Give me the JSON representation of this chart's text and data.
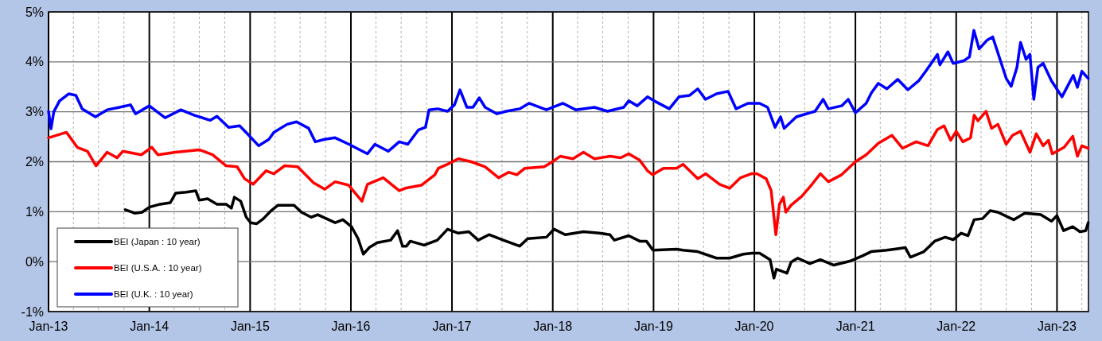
{
  "chart_data": {
    "type": "line",
    "xlim": [
      "2013-01-01",
      "2023-04-25"
    ],
    "ylim": [
      -1,
      5
    ],
    "yticks": [
      {
        "value": -1,
        "label": "-1%"
      },
      {
        "value": 0,
        "label": "0%"
      },
      {
        "value": 1,
        "label": "1%"
      },
      {
        "value": 2,
        "label": "2%"
      },
      {
        "value": 3,
        "label": "3%"
      },
      {
        "value": 4,
        "label": "4%"
      },
      {
        "value": 5,
        "label": "5%"
      }
    ],
    "xticks": [
      {
        "value": "2013-01-01",
        "label": "Jan-13"
      },
      {
        "value": "2013-04-01",
        "label": null
      },
      {
        "value": "2013-07-01",
        "label": null
      },
      {
        "value": "2013-10-01",
        "label": null
      },
      {
        "value": "2014-01-01",
        "label": "Jan-14"
      },
      {
        "value": "2014-04-01",
        "label": null
      },
      {
        "value": "2014-07-01",
        "label": null
      },
      {
        "value": "2014-10-01",
        "label": null
      },
      {
        "value": "2015-01-01",
        "label": "Jan-15"
      },
      {
        "value": "2015-04-01",
        "label": null
      },
      {
        "value": "2015-07-01",
        "label": null
      },
      {
        "value": "2015-10-01",
        "label": null
      },
      {
        "value": "2016-01-01",
        "label": "Jan-16"
      },
      {
        "value": "2016-04-01",
        "label": null
      },
      {
        "value": "2016-07-01",
        "label": null
      },
      {
        "value": "2016-10-01",
        "label": null
      },
      {
        "value": "2017-01-01",
        "label": "Jan-17"
      },
      {
        "value": "2017-04-01",
        "label": null
      },
      {
        "value": "2017-07-01",
        "label": null
      },
      {
        "value": "2017-10-01",
        "label": null
      },
      {
        "value": "2018-01-01",
        "label": "Jan-18"
      },
      {
        "value": "2018-04-01",
        "label": null
      },
      {
        "value": "2018-07-01",
        "label": null
      },
      {
        "value": "2018-10-01",
        "label": null
      },
      {
        "value": "2019-01-01",
        "label": "Jan-19"
      },
      {
        "value": "2019-04-01",
        "label": null
      },
      {
        "value": "2019-07-01",
        "label": null
      },
      {
        "value": "2019-10-01",
        "label": null
      },
      {
        "value": "2020-01-01",
        "label": "Jan-20"
      },
      {
        "value": "2020-04-01",
        "label": null
      },
      {
        "value": "2020-07-01",
        "label": null
      },
      {
        "value": "2020-10-01",
        "label": null
      },
      {
        "value": "2021-01-01",
        "label": "Jan-21"
      },
      {
        "value": "2021-04-01",
        "label": null
      },
      {
        "value": "2021-07-01",
        "label": null
      },
      {
        "value": "2021-10-01",
        "label": null
      },
      {
        "value": "2022-01-01",
        "label": "Jan-22"
      },
      {
        "value": "2022-04-01",
        "label": null
      },
      {
        "value": "2022-07-01",
        "label": null
      },
      {
        "value": "2022-10-01",
        "label": null
      },
      {
        "value": "2023-01-01",
        "label": "Jan-23"
      },
      {
        "value": "2023-04-01",
        "label": null
      }
    ],
    "grid": true,
    "legend": "bottom left",
    "line_style": "solid",
    "marker": "none",
    "series": [
      {
        "name": "BEI (Japan : 10 year)",
        "color": "#000000",
        "x": [
          "2013-10-06",
          "2013-11-09",
          "2013-12-06",
          "2014-01-01",
          "2014-02-09",
          "2014-03-18",
          "2014-04-06",
          "2014-05-15",
          "2014-06-18",
          "2014-07-01",
          "2014-07-31",
          "2014-09-03",
          "2014-10-06",
          "2014-10-25",
          "2014-11-05",
          "2014-11-28",
          "2014-12-18",
          "2015-01-03",
          "2015-01-25",
          "2015-02-18",
          "2015-03-18",
          "2015-04-12",
          "2015-05-06",
          "2015-06-09",
          "2015-07-06",
          "2015-08-10",
          "2015-09-03",
          "2015-11-05",
          "2015-12-03",
          "2016-01-03",
          "2016-01-27",
          "2016-02-15",
          "2016-03-09",
          "2016-04-06",
          "2016-05-24",
          "2016-06-18",
          "2016-07-06",
          "2016-07-20",
          "2016-08-03",
          "2016-09-22",
          "2016-11-09",
          "2016-12-16",
          "2017-01-24",
          "2017-03-03",
          "2017-04-06",
          "2017-05-15",
          "2017-07-06",
          "2017-09-03",
          "2017-10-02",
          "2017-12-09",
          "2018-01-06",
          "2018-02-15",
          "2018-04-22",
          "2018-06-18",
          "2018-07-27",
          "2018-08-12",
          "2018-10-03",
          "2018-11-12",
          "2018-12-06",
          "2018-12-30",
          "2019-03-25",
          "2019-04-18",
          "2019-06-10",
          "2019-08-17",
          "2019-10-04",
          "2019-11-22",
          "2019-12-24",
          "2020-01-20",
          "2020-02-27",
          "2020-03-12",
          "2020-03-21",
          "2020-04-28",
          "2020-05-13",
          "2020-06-06",
          "2020-07-20",
          "2020-08-27",
          "2020-10-15",
          "2020-12-12",
          "2021-01-28",
          "2021-02-27",
          "2021-04-24",
          "2021-05-22",
          "2021-07-01",
          "2021-07-19",
          "2021-09-06",
          "2021-10-15",
          "2021-11-22",
          "2021-12-21",
          "2022-01-19",
          "2022-02-13",
          "2022-03-07",
          "2022-04-06",
          "2022-05-04",
          "2022-06-01",
          "2022-07-28",
          "2022-09-06",
          "2022-11-03",
          "2022-12-12",
          "2023-01-01",
          "2023-01-25",
          "2023-02-27",
          "2023-03-25",
          "2023-04-15",
          "2023-04-24"
        ],
        "values": [
          1.04,
          0.97,
          0.99,
          1.09,
          1.15,
          1.18,
          1.37,
          1.39,
          1.42,
          1.23,
          1.26,
          1.15,
          1.15,
          1.07,
          1.29,
          1.21,
          0.89,
          0.78,
          0.76,
          0.86,
          1.02,
          1.13,
          1.13,
          1.13,
          0.99,
          0.89,
          0.94,
          0.78,
          0.84,
          0.7,
          0.46,
          0.15,
          0.29,
          0.38,
          0.43,
          0.62,
          0.31,
          0.31,
          0.41,
          0.33,
          0.43,
          0.65,
          0.57,
          0.6,
          0.43,
          0.54,
          0.43,
          0.31,
          0.46,
          0.49,
          0.65,
          0.54,
          0.6,
          0.57,
          0.54,
          0.43,
          0.52,
          0.41,
          0.41,
          0.23,
          0.25,
          0.23,
          0.2,
          0.07,
          0.07,
          0.15,
          0.17,
          0.17,
          0.04,
          -0.33,
          -0.15,
          -0.23,
          -0.01,
          0.07,
          -0.04,
          0.04,
          -0.07,
          0.01,
          0.12,
          0.2,
          0.23,
          0.25,
          0.28,
          0.09,
          0.2,
          0.41,
          0.49,
          0.44,
          0.57,
          0.52,
          0.84,
          0.86,
          1.02,
          0.99,
          0.84,
          0.97,
          0.94,
          0.81,
          0.92,
          0.62,
          0.7,
          0.6,
          0.62,
          0.78
        ]
      },
      {
        "name": "BEI (U.S.A. : 10 year)",
        "color": "#ff0000",
        "x": [
          "2013-01-01",
          "2013-03-07",
          "2013-04-15",
          "2013-05-22",
          "2013-06-22",
          "2013-08-01",
          "2013-09-06",
          "2013-09-27",
          "2013-12-03",
          "2014-01-10",
          "2014-02-01",
          "2014-04-06",
          "2014-07-01",
          "2014-08-18",
          "2014-10-06",
          "2014-11-15",
          "2014-12-12",
          "2015-01-12",
          "2015-02-28",
          "2015-03-28",
          "2015-05-06",
          "2015-06-22",
          "2015-08-19",
          "2015-09-28",
          "2015-11-05",
          "2015-12-24",
          "2016-02-10",
          "2016-03-01",
          "2016-04-27",
          "2016-06-24",
          "2016-07-16",
          "2016-09-12",
          "2016-10-31",
          "2016-11-13",
          "2016-12-16",
          "2017-01-24",
          "2017-03-12",
          "2017-05-01",
          "2017-06-19",
          "2017-07-25",
          "2017-08-24",
          "2017-09-22",
          "2017-12-01",
          "2017-12-25",
          "2018-01-28",
          "2018-03-15",
          "2018-04-22",
          "2018-06-01",
          "2018-07-28",
          "2018-09-04",
          "2018-10-03",
          "2018-11-12",
          "2018-12-10",
          "2018-12-29",
          "2019-02-06",
          "2019-03-25",
          "2019-04-18",
          "2019-06-10",
          "2019-07-09",
          "2019-08-28",
          "2019-10-04",
          "2019-11-12",
          "2019-12-21",
          "2020-01-10",
          "2020-02-13",
          "2020-03-02",
          "2020-03-12",
          "2020-03-19",
          "2020-04-01",
          "2020-04-15",
          "2020-04-24",
          "2020-05-13",
          "2020-06-21",
          "2020-07-28",
          "2020-08-27",
          "2020-09-25",
          "2020-11-12",
          "2021-01-01",
          "2021-02-09",
          "2021-03-25",
          "2021-05-13",
          "2021-06-21",
          "2021-08-09",
          "2021-09-21",
          "2021-10-24",
          "2021-11-18",
          "2021-12-12",
          "2022-01-01",
          "2022-01-25",
          "2022-02-22",
          "2022-03-07",
          "2022-03-21",
          "2022-04-19",
          "2022-05-09",
          "2022-06-01",
          "2022-07-01",
          "2022-07-24",
          "2022-08-22",
          "2022-09-25",
          "2022-10-18",
          "2022-11-12",
          "2022-12-01",
          "2022-12-15",
          "2023-01-27",
          "2023-02-27",
          "2023-03-16",
          "2023-04-01",
          "2023-04-24"
        ],
        "values": [
          2.48,
          2.59,
          2.29,
          2.21,
          1.92,
          2.19,
          2.08,
          2.21,
          2.14,
          2.29,
          2.14,
          2.19,
          2.24,
          2.14,
          1.92,
          1.9,
          1.66,
          1.55,
          1.82,
          1.76,
          1.92,
          1.9,
          1.58,
          1.45,
          1.6,
          1.53,
          1.21,
          1.55,
          1.68,
          1.42,
          1.47,
          1.53,
          1.74,
          1.87,
          1.95,
          2.06,
          2.0,
          1.9,
          1.68,
          1.79,
          1.74,
          1.87,
          1.9,
          1.98,
          2.11,
          2.06,
          2.19,
          2.06,
          2.11,
          2.08,
          2.16,
          2.03,
          1.82,
          1.74,
          1.87,
          1.87,
          1.95,
          1.66,
          1.76,
          1.55,
          1.47,
          1.68,
          1.76,
          1.76,
          1.66,
          1.42,
          0.89,
          0.54,
          1.15,
          1.29,
          0.99,
          1.13,
          1.31,
          1.55,
          1.76,
          1.6,
          1.74,
          2.0,
          2.14,
          2.37,
          2.53,
          2.27,
          2.4,
          2.32,
          2.64,
          2.72,
          2.43,
          2.61,
          2.4,
          2.48,
          2.93,
          2.82,
          3.01,
          2.67,
          2.75,
          2.35,
          2.53,
          2.61,
          2.19,
          2.56,
          2.32,
          2.43,
          2.16,
          2.29,
          2.51,
          2.11,
          2.32,
          2.27
        ]
      },
      {
        "name": "BEI (U.K. : 10 year)",
        "color": "#0000ff",
        "x": [
          "2013-01-01",
          "2013-01-10",
          "2013-01-20",
          "2013-02-10",
          "2013-03-15",
          "2013-04-10",
          "2013-05-03",
          "2013-06-20",
          "2013-08-01",
          "2013-09-15",
          "2013-10-25",
          "2013-11-12",
          "2014-01-01",
          "2014-02-27",
          "2014-04-25",
          "2014-06-14",
          "2014-08-10",
          "2014-09-03",
          "2014-10-15",
          "2014-11-24",
          "2014-12-22",
          "2015-02-01",
          "2015-03-10",
          "2015-03-28",
          "2015-05-15",
          "2015-06-18",
          "2015-08-01",
          "2015-08-25",
          "2015-09-28",
          "2015-11-05",
          "2015-12-25",
          "2016-03-01",
          "2016-03-28",
          "2016-05-15",
          "2016-06-24",
          "2016-07-25",
          "2016-09-02",
          "2016-09-27",
          "2016-10-10",
          "2016-11-10",
          "2016-12-16",
          "2017-01-10",
          "2017-01-30",
          "2017-02-24",
          "2017-03-18",
          "2017-04-10",
          "2017-05-01",
          "2017-06-13",
          "2017-07-16",
          "2017-09-03",
          "2017-10-07",
          "2017-12-09",
          "2018-02-07",
          "2018-03-25",
          "2018-06-01",
          "2018-07-18",
          "2018-09-15",
          "2018-10-03",
          "2018-11-03",
          "2018-12-10",
          "2019-01-03",
          "2019-02-27",
          "2019-04-03",
          "2019-05-12",
          "2019-06-10",
          "2019-07-08",
          "2019-08-17",
          "2019-09-28",
          "2019-10-27",
          "2019-12-09",
          "2020-01-20",
          "2020-02-18",
          "2020-03-16",
          "2020-04-05",
          "2020-04-18",
          "2020-06-01",
          "2020-08-08",
          "2020-09-06",
          "2020-09-25",
          "2020-11-12",
          "2020-12-06",
          "2021-01-01",
          "2021-02-09",
          "2021-02-28",
          "2021-03-25",
          "2021-04-25",
          "2021-06-03",
          "2021-07-10",
          "2021-08-18",
          "2021-09-15",
          "2021-10-25",
          "2021-11-03",
          "2021-12-02",
          "2021-12-21",
          "2022-01-28",
          "2022-02-18",
          "2022-03-06",
          "2022-03-25",
          "2022-04-24",
          "2022-05-13",
          "2022-06-01",
          "2022-07-01",
          "2022-07-19",
          "2022-08-09",
          "2022-08-22",
          "2022-09-11",
          "2022-09-25",
          "2022-10-09",
          "2022-10-24",
          "2022-11-12",
          "2022-12-12",
          "2023-01-19",
          "2023-02-08",
          "2023-03-01",
          "2023-03-16",
          "2023-04-01",
          "2023-04-24"
        ],
        "values": [
          3.01,
          2.66,
          3.0,
          3.22,
          3.36,
          3.33,
          3.06,
          2.9,
          3.04,
          3.09,
          3.14,
          2.96,
          3.12,
          2.88,
          3.04,
          2.93,
          2.83,
          2.91,
          2.69,
          2.72,
          2.56,
          2.32,
          2.45,
          2.59,
          2.75,
          2.8,
          2.67,
          2.4,
          2.45,
          2.48,
          2.35,
          2.16,
          2.35,
          2.21,
          2.4,
          2.35,
          2.64,
          2.69,
          3.04,
          3.06,
          3.01,
          3.14,
          3.44,
          3.09,
          3.09,
          3.28,
          3.09,
          2.96,
          3.01,
          3.06,
          3.17,
          3.04,
          3.17,
          3.04,
          3.09,
          3.01,
          3.09,
          3.22,
          3.12,
          3.3,
          3.22,
          3.06,
          3.3,
          3.33,
          3.46,
          3.25,
          3.36,
          3.41,
          3.06,
          3.17,
          3.17,
          3.09,
          2.69,
          2.9,
          2.67,
          2.9,
          3.01,
          3.25,
          3.06,
          3.12,
          3.25,
          2.98,
          3.17,
          3.38,
          3.57,
          3.46,
          3.65,
          3.44,
          3.62,
          3.83,
          4.15,
          3.94,
          4.2,
          3.97,
          4.02,
          4.1,
          4.63,
          4.26,
          4.44,
          4.5,
          4.18,
          3.67,
          3.51,
          3.89,
          4.39,
          4.05,
          4.15,
          3.25,
          3.89,
          3.97,
          3.62,
          3.3,
          3.51,
          3.73,
          3.49,
          3.81,
          3.67
        ]
      }
    ]
  }
}
